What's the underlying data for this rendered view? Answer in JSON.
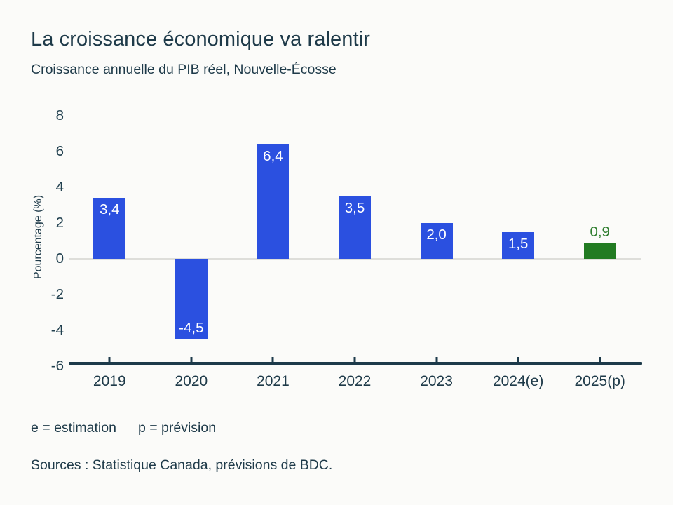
{
  "page": {
    "background": "#FBFBF9",
    "text_color": "#1E3A49"
  },
  "header": {
    "title": "La croissance économique va ralentir",
    "subtitle": "Croissance annuelle du PIB réel, Nouvelle-Écosse"
  },
  "chart_data": {
    "type": "bar",
    "title": "La croissance économique va ralentir",
    "subtitle": "Croissance annuelle du PIB réel, Nouvelle-Écosse",
    "categories": [
      "2019",
      "2020",
      "2021",
      "2022",
      "2023",
      "2024(e)",
      "2025(p)"
    ],
    "values": [
      3.4,
      -4.5,
      6.4,
      3.5,
      2.0,
      1.5,
      0.9
    ],
    "value_labels": [
      "3,4",
      "-4,5",
      "6,4",
      "3,5",
      "2,0",
      "1,5",
      "0,9"
    ],
    "bar_colors": [
      "#2B50E0",
      "#2B50E0",
      "#2B50E0",
      "#2B50E0",
      "#2B50E0",
      "#2B50E0",
      "#227B22"
    ],
    "value_label_styles": [
      "inside-top",
      "inside-bottom",
      "inside-top",
      "inside-top",
      "inside-top",
      "inside-top",
      "above"
    ],
    "value_label_colors": [
      "#FFFFFF",
      "#FFFFFF",
      "#FFFFFF",
      "#FFFFFF",
      "#FFFFFF",
      "#FFFFFF",
      "#2E7D2E"
    ],
    "xlabel": "",
    "ylabel": "Pourcentage (%)",
    "yticks": [
      8,
      6,
      4,
      2,
      0,
      -2,
      -4,
      -6
    ],
    "ylim": [
      -6,
      8
    ],
    "grid": "zero-line-only",
    "legend": "none",
    "accent_blue": "#2B50E0",
    "accent_green": "#227B22",
    "axis_color": "#1D3A4A",
    "zero_line_color": "#DEDEDA"
  },
  "footnotes": {
    "estimation": "e = estimation",
    "prevision": "p = prévision",
    "sources": "Sources : Statistique Canada, prévisions de BDC."
  }
}
